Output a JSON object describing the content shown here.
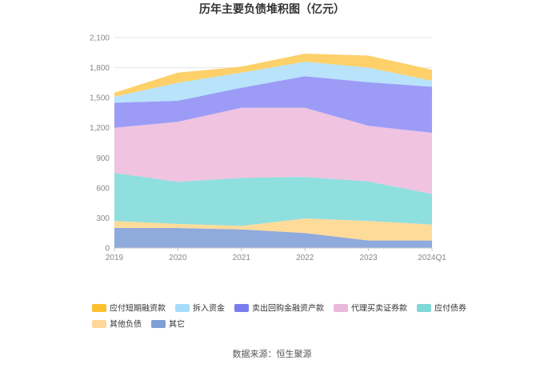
{
  "chart_data": {
    "type": "area",
    "stacked": true,
    "title": "历年主要负债堆积图（亿元）",
    "x": [
      "2019",
      "2020",
      "2021",
      "2022",
      "2023",
      "2024Q1"
    ],
    "ylim": [
      0,
      2100
    ],
    "yticks": [
      "0",
      "300",
      "600",
      "900",
      "1,200",
      "1,500",
      "1,800",
      "2,100"
    ],
    "grid": true,
    "legend_position": "bottom",
    "series": [
      {
        "name": "其它",
        "color": "#8faadc",
        "values": [
          200,
          200,
          185,
          150,
          75,
          75
        ]
      },
      {
        "name": "其他负债",
        "color": "#ffdb99",
        "values": [
          70,
          40,
          35,
          145,
          195,
          160
        ]
      },
      {
        "name": "应付债券",
        "color": "#8fdfdf",
        "values": [
          480,
          420,
          480,
          415,
          395,
          305
        ]
      },
      {
        "name": "代理买卖证券款",
        "color": "#f0c3e0",
        "values": [
          450,
          600,
          700,
          690,
          555,
          610
        ]
      },
      {
        "name": "卖出回购金融资产款",
        "color": "#9c9cf7",
        "values": [
          250,
          210,
          200,
          315,
          435,
          460
        ]
      },
      {
        "name": "拆入资金",
        "color": "#b8e3fb",
        "values": [
          60,
          180,
          150,
          145,
          145,
          60
        ]
      },
      {
        "name": "应付短期融资款",
        "color": "#fdd06a",
        "values": [
          40,
          100,
          60,
          80,
          120,
          110
        ]
      }
    ],
    "legend_order": [
      "应付短期融资款",
      "拆入资金",
      "卖出回购金融资产款",
      "代理买卖证券款",
      "应付债券",
      "其他负债",
      "其它"
    ],
    "legend_colors": {
      "应付短期融资款": "#fbc02d",
      "拆入资金": "#a5dcfb",
      "卖出回购金融资产款": "#7b7bf0",
      "代理买卖证券款": "#eab8d8",
      "应付债券": "#7fd8d8",
      "其他负债": "#ffd699",
      "其它": "#7fa0d6"
    }
  },
  "source": "数据来源：恒生聚源"
}
